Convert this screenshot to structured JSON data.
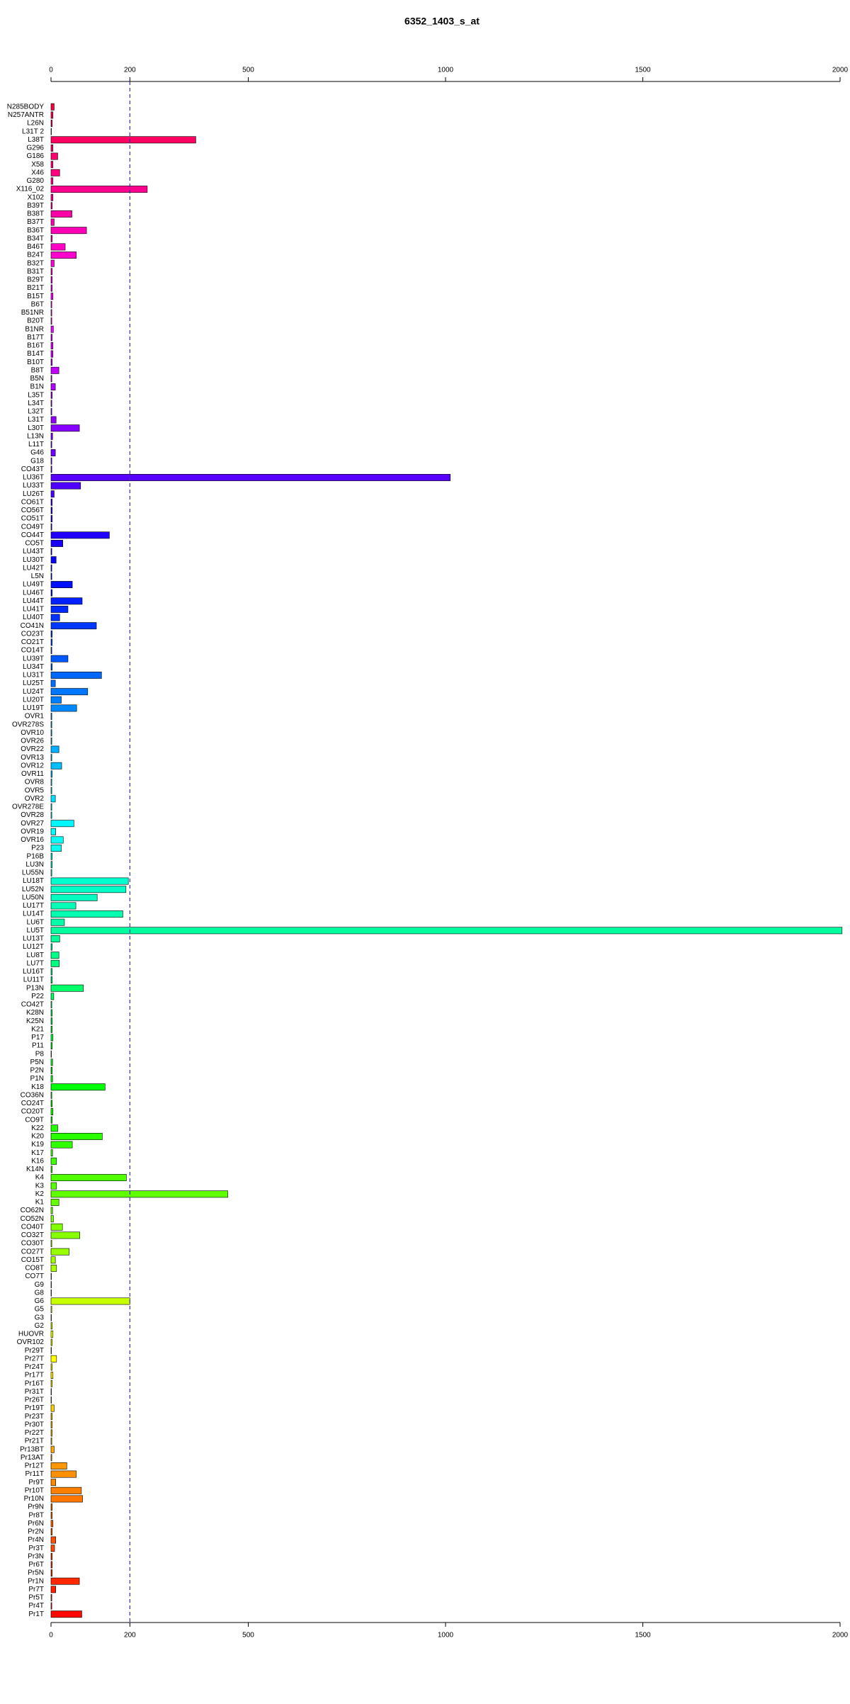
{
  "chart_data": {
    "type": "barh",
    "title": "6352_1403_s_at",
    "categories": [
      "N285BODY",
      "N257ANTR",
      "L26N",
      "L31T 2",
      "L38T",
      "G296",
      "G186",
      "X58",
      "X46",
      "G280",
      "X116_02",
      "X102",
      "B39T",
      "B38T",
      "B37T",
      "B36T",
      "B34T",
      "B46T",
      "B24T",
      "B32T",
      "B31T",
      "B29T",
      "B21T",
      "B15T",
      "B6T",
      "B51NR",
      "B20T",
      "B1NR",
      "B17T",
      "B16T",
      "B14T",
      "B10T",
      "B8T",
      "B5N",
      "B1N",
      "L35T",
      "L34T",
      "L32T",
      "L31T",
      "L30T",
      "L13N",
      "L11T",
      "G46",
      "G18",
      "CO43T",
      "LU36T",
      "LU33T",
      "LU26T",
      "CO61T",
      "CO56T",
      "CO51T",
      "CO49T",
      "CO44T",
      "CO5T",
      "LU43T",
      "LU30T",
      "LU42T",
      "L5N",
      "LU49T",
      "LU46T",
      "LU44T",
      "LU41T",
      "LU40T",
      "CO41N",
      "CO23T",
      "CO21T",
      "CO14T",
      "LU39T",
      "LU34T",
      "LU31T",
      "LU25T",
      "LU24T",
      "LU20T",
      "LU19T",
      "OVR1",
      "OVR278S",
      "OVR10",
      "OVR26",
      "OVR22",
      "OVR13",
      "OVR12",
      "OVR11",
      "OVR8",
      "OVR5",
      "OVR2",
      "OVR278E",
      "OVR28",
      "OVR27",
      "OVR19",
      "OVR16",
      "P23",
      "P16B",
      "LU3N",
      "LU55N",
      "LU18T",
      "LU52N",
      "LU50N",
      "LU17T",
      "LU14T",
      "LU6T",
      "LU5T",
      "LU13T",
      "LU12T",
      "LU8T",
      "LU7T",
      "LU16T",
      "LU11T",
      "P13N",
      "P22",
      "CO42T",
      "K28N",
      "K25N",
      "K21",
      "P17",
      "P11",
      "P8",
      "P5N",
      "P2N",
      "P1N",
      "K18",
      "CO36N",
      "CO24T",
      "CO20T",
      "CO9T",
      "K22",
      "K20",
      "K19",
      "K17",
      "K16",
      "K14N",
      "K4",
      "K3",
      "K2",
      "K1",
      "CO62N",
      "CO52N",
      "CO40T",
      "CO32T",
      "CO30T",
      "CO27T",
      "CO15T",
      "CO8T",
      "CO7T",
      "G9",
      "G8",
      "G6",
      "G5",
      "G3",
      "G2",
      "HUOVR",
      "OVR102",
      "Pr29T",
      "Pr27T",
      "Pr24T",
      "Pr17T",
      "Pr16T",
      "Pr31T",
      "Pr26T",
      "Pr19T",
      "Pr23T",
      "Pr30T",
      "Pr22T",
      "Pr21T",
      "Pr13BT",
      "Pr13AT",
      "Pr12T",
      "Pr11T",
      "Pr9T",
      "Pr10T",
      "Pr10N",
      "Pr9N",
      "Pr8T",
      "Pr6N",
      "Pr2N",
      "Pr4N",
      "Pr3T",
      "Pr3N",
      "Pr6T",
      "Pr5N",
      "Pr1N",
      "Pr7T",
      "Pr5T",
      "Pr4T",
      "Pr1T"
    ],
    "values": [
      8,
      5,
      3,
      1,
      367,
      5,
      17,
      5,
      22,
      5,
      244,
      5,
      3,
      53,
      8,
      90,
      3,
      36,
      64,
      8,
      3,
      3,
      3,
      5,
      2,
      2,
      2,
      6,
      3,
      5,
      5,
      3,
      20,
      2,
      11,
      3,
      2,
      2,
      13,
      72,
      4,
      2,
      11,
      2,
      2,
      1012,
      75,
      8,
      3,
      3,
      3,
      2,
      148,
      30,
      2,
      13,
      2,
      2,
      54,
      3,
      79,
      43,
      22,
      115,
      3,
      3,
      2,
      43,
      3,
      128,
      11,
      93,
      26,
      65,
      2,
      2,
      2,
      2,
      20,
      2,
      27,
      3,
      2,
      2,
      11,
      2,
      2,
      58,
      12,
      31,
      26,
      3,
      3,
      2,
      196,
      190,
      117,
      63,
      182,
      34,
      2005,
      22,
      3,
      20,
      21,
      3,
      3,
      82,
      7,
      2,
      3,
      3,
      3,
      5,
      3,
      1,
      4,
      3,
      4,
      137,
      2,
      3,
      5,
      3,
      17,
      130,
      54,
      4,
      14,
      3,
      191,
      14,
      448,
      20,
      4,
      6,
      29,
      73,
      2,
      46,
      11,
      14,
      1,
      1,
      1,
      200,
      2,
      1,
      3,
      5,
      3,
      1,
      14,
      3,
      5,
      3,
      1,
      1,
      8,
      3,
      3,
      3,
      2,
      8,
      2,
      40,
      64,
      12,
      77,
      80,
      3,
      3,
      5,
      3,
      12,
      9,
      3,
      3,
      3,
      72,
      12,
      2,
      2,
      78
    ],
    "palette": "rainbow",
    "xlim": [
      0,
      2010
    ],
    "xticks": [
      0,
      200,
      500,
      1000,
      1500,
      2000
    ],
    "reference_line": 200,
    "reference_color": "#3333aa"
  }
}
